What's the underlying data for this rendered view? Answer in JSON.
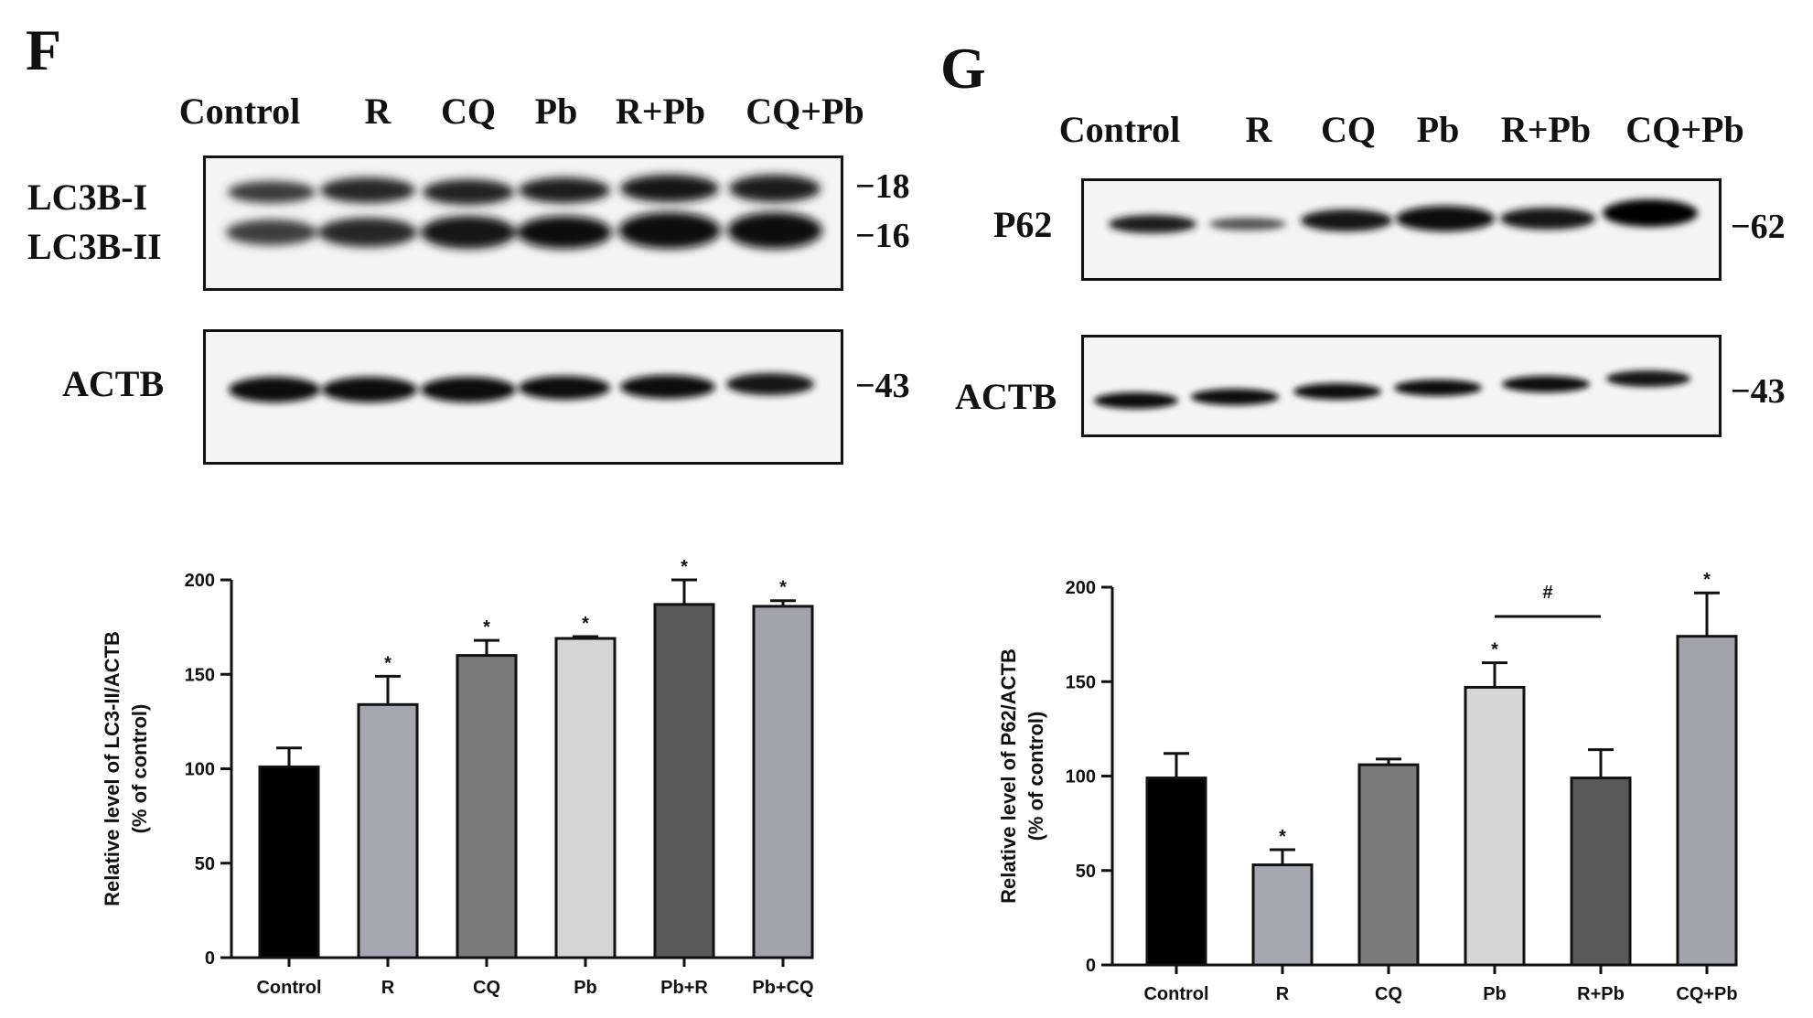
{
  "panel_f": {
    "letter": "F",
    "lanes": [
      "Control",
      "R",
      "CQ",
      "Pb",
      "R+Pb",
      "CQ+Pb"
    ],
    "blot1": {
      "labels": [
        "LC3B-I",
        "LC3B-II"
      ],
      "markers": [
        "−18",
        "−16"
      ]
    },
    "blot2": {
      "label": "ACTB",
      "marker": "−43"
    }
  },
  "panel_g": {
    "letter": "G",
    "lanes": [
      "Control",
      "R",
      "CQ",
      "Pb",
      "R+Pb",
      "CQ+Pb"
    ],
    "blot1": {
      "label": "P62",
      "marker": "−62"
    },
    "blot2": {
      "label": "ACTB",
      "marker": "−43"
    }
  },
  "chart_data": [
    {
      "type": "bar",
      "ylabel_line1": "Relative level of LC3-II/ACTB",
      "ylabel_line2": "(% of control)",
      "categories": [
        "Control",
        "R",
        "CQ",
        "Pb",
        "Pb+R",
        "Pb+CQ"
      ],
      "values": [
        101,
        134,
        160,
        169,
        187,
        186
      ],
      "errors": [
        10,
        15,
        8,
        1,
        13,
        3
      ],
      "significance": [
        "",
        "*",
        "*",
        "*",
        "*",
        "*"
      ],
      "colors": [
        "#000000",
        "#a6a6b0",
        "#7b7b7b",
        "#d6d6d6",
        "#5a5a5a",
        "#a3a3ab"
      ],
      "ylim": [
        0,
        200
      ],
      "yticks": [
        0,
        50,
        100,
        150,
        200
      ]
    },
    {
      "type": "bar",
      "ylabel_line1": "Relative level of P62/ACTB",
      "ylabel_line2": "(% of control)",
      "categories": [
        "Control",
        "R",
        "CQ",
        "Pb",
        "R+Pb",
        "CQ+Pb"
      ],
      "values": [
        99,
        53,
        106,
        147,
        99,
        174
      ],
      "errors": [
        13,
        8,
        3,
        13,
        15,
        23
      ],
      "significance": [
        "",
        "*",
        "",
        "*",
        "",
        "*"
      ],
      "comparison": {
        "from": 3,
        "to": 4,
        "symbol": "#"
      },
      "colors": [
        "#000000",
        "#a6a6b0",
        "#7b7b7b",
        "#d6d6d6",
        "#5a5a5a",
        "#a3a3ab"
      ],
      "ylim": [
        0,
        200
      ],
      "yticks": [
        0,
        50,
        100,
        150,
        200
      ]
    }
  ]
}
